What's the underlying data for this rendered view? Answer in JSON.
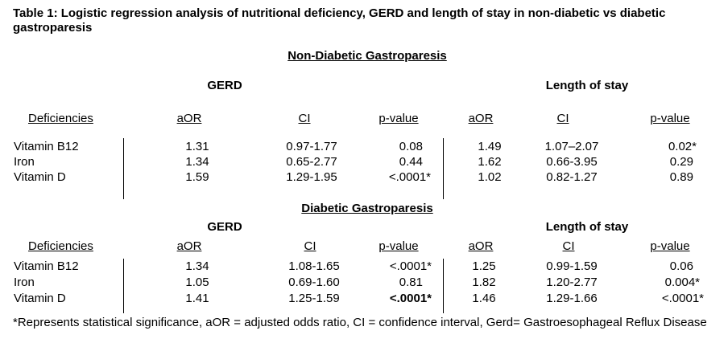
{
  "title": "Table 1:  Logistic regression analysis of nutritional deficiency, GERD and length of stay in non-diabetic vs diabetic gastroparesis",
  "sections": [
    {
      "heading": "Non-Diabetic Gastroparesis",
      "group_left": "GERD",
      "group_right": "Length of stay",
      "columns": [
        "Deficiencies",
        "aOR",
        "CI",
        "p-value",
        "aOR",
        "CI",
        "p-value"
      ],
      "rows": [
        [
          "Vitamin B12",
          "1.31",
          "0.97-1.77",
          "0.08",
          "1.49",
          "1.07–2.07",
          "0.02*"
        ],
        [
          "Iron",
          "1.34",
          "0.65-2.77",
          "0.44",
          "1.62",
          "0.66-3.95",
          "0.29"
        ],
        [
          "Vitamin D",
          "1.59",
          "1.29-1.95",
          "<.0001*",
          "1.02",
          "0.82-1.27",
          "0.89"
        ]
      ]
    },
    {
      "heading": "Diabetic Gastroparesis",
      "group_left": "GERD",
      "group_right": "Length of stay",
      "columns": [
        "Deficiencies",
        "aOR",
        "CI",
        "p-value",
        "aOR",
        "CI",
        "p-value"
      ],
      "rows": [
        [
          "Vitamin B12",
          "1.34",
          "1.08-1.65",
          "<.0001*",
          "1.25",
          "0.99-1.59",
          "0.06"
        ],
        [
          "Iron",
          "1.05",
          "0.69-1.60",
          "0.81",
          "1.82",
          "1.20-2.77",
          "0.004*"
        ],
        [
          "Vitamin D",
          "1.41",
          "1.25-1.59",
          "<.0001*",
          "1.46",
          "1.29-1.66",
          "<.0001*"
        ]
      ]
    }
  ],
  "footnote": "*Represents statistical significance, aOR = adjusted odds ratio, CI = confidence interval, Gerd= Gastroesophageal Reflux Disease"
}
